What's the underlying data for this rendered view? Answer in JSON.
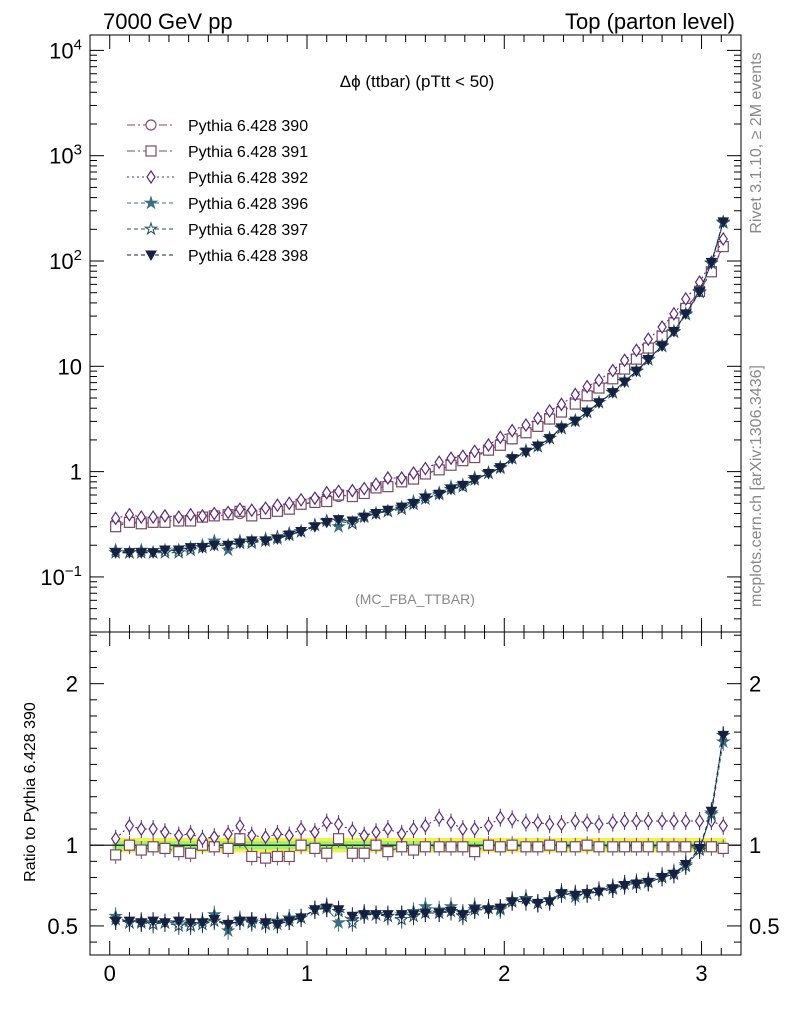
{
  "header": {
    "left": "7000 GeV pp",
    "right": "Top (parton level)"
  },
  "side_labels": {
    "rivet": "Rivet 3.1.10, ≥ 2M events",
    "mcplots": "mcplots.cern.ch [arXiv:1306.3436]"
  },
  "plot_title": "Δϕ (ttbar) (pTtt < 50)",
  "analysis_tag": "(MC_FBA_TTBAR)",
  "ratio_ylabel": "Ratio to Pythia 6.428 390",
  "chart_data": [
    {
      "type": "line",
      "panel": "main",
      "yscale": "log",
      "xlim": [
        -0.1,
        3.2
      ],
      "ylim": [
        0.03,
        14000
      ],
      "ytick_labels": [
        "10^-1",
        "1",
        "10",
        "10^2",
        "10^3",
        "10^4"
      ],
      "legend_placement": "top-left",
      "x": [
        0.03,
        0.1,
        0.16,
        0.22,
        0.28,
        0.35,
        0.41,
        0.47,
        0.53,
        0.6,
        0.66,
        0.72,
        0.79,
        0.85,
        0.91,
        0.97,
        1.04,
        1.1,
        1.16,
        1.23,
        1.29,
        1.35,
        1.41,
        1.48,
        1.54,
        1.6,
        1.67,
        1.73,
        1.79,
        1.85,
        1.92,
        1.98,
        2.04,
        2.11,
        2.17,
        2.23,
        2.29,
        2.36,
        2.42,
        2.48,
        2.55,
        2.61,
        2.67,
        2.73,
        2.8,
        2.86,
        2.92,
        2.99,
        3.05,
        3.11
      ],
      "series": [
        {
          "name": "Pythia 6.428 390",
          "color": "#8a4a72",
          "marker": "circle",
          "dash": "8,3,2,3",
          "values": [
            0.32,
            0.33,
            0.33,
            0.33,
            0.34,
            0.35,
            0.36,
            0.37,
            0.38,
            0.39,
            0.4,
            0.41,
            0.43,
            0.45,
            0.47,
            0.49,
            0.52,
            0.55,
            0.58,
            0.61,
            0.65,
            0.7,
            0.75,
            0.81,
            0.88,
            0.96,
            1.05,
            1.16,
            1.28,
            1.42,
            1.6,
            1.8,
            2.04,
            2.35,
            2.7,
            3.15,
            3.7,
            4.4,
            5.25,
            6.3,
            7.7,
            9.5,
            11.8,
            15,
            19.5,
            26,
            36,
            52,
            80,
            140
          ]
        },
        {
          "name": "Pythia 6.428 391",
          "color": "#7a4a66",
          "marker": "square",
          "dash": "8,3,2,3",
          "values": [
            0.3,
            0.33,
            0.32,
            0.33,
            0.33,
            0.34,
            0.34,
            0.37,
            0.38,
            0.39,
            0.42,
            0.38,
            0.4,
            0.42,
            0.44,
            0.49,
            0.51,
            0.52,
            0.6,
            0.58,
            0.62,
            0.7,
            0.72,
            0.8,
            0.85,
            0.95,
            1.04,
            1.15,
            1.27,
            1.36,
            1.6,
            1.78,
            2.05,
            2.34,
            2.69,
            3.16,
            3.68,
            4.38,
            5.25,
            6.22,
            7.61,
            9.42,
            11.7,
            14.9,
            19.3,
            25.8,
            35.5,
            51.5,
            79,
            137
          ]
        },
        {
          "name": "Pythia 6.428 392",
          "color": "#5b2a78",
          "marker": "diamond",
          "dash": "2,3",
          "values": [
            0.36,
            0.39,
            0.37,
            0.37,
            0.38,
            0.37,
            0.39,
            0.38,
            0.4,
            0.41,
            0.44,
            0.43,
            0.45,
            0.48,
            0.5,
            0.54,
            0.56,
            0.63,
            0.65,
            0.66,
            0.69,
            0.76,
            0.87,
            0.87,
            0.97,
            1.07,
            1.23,
            1.34,
            1.4,
            1.56,
            1.79,
            2.12,
            2.45,
            2.77,
            3.21,
            3.77,
            4.35,
            5.4,
            6.42,
            7.37,
            9.12,
            11.4,
            14.2,
            18.1,
            23.6,
            31.5,
            43.6,
            63,
            97,
            162
          ]
        },
        {
          "name": "Pythia 6.428 396",
          "color": "#3d6e7e",
          "marker": "star-filled",
          "dash": "4,3",
          "values": [
            0.18,
            0.17,
            0.18,
            0.17,
            0.18,
            0.18,
            0.19,
            0.2,
            0.22,
            0.18,
            0.22,
            0.22,
            0.23,
            0.23,
            0.26,
            0.27,
            0.31,
            0.34,
            0.3,
            0.33,
            0.37,
            0.4,
            0.42,
            0.46,
            0.52,
            0.59,
            0.63,
            0.72,
            0.75,
            0.88,
            0.98,
            1.08,
            1.35,
            1.58,
            1.73,
            2.07,
            2.64,
            3.01,
            3.69,
            4.55,
            5.7,
            7.19,
            9.08,
            11.7,
            15.8,
            21.5,
            31.7,
            51,
            95,
            230
          ]
        },
        {
          "name": "Pythia 6.428 397",
          "color": "#24505e",
          "marker": "star-open",
          "dash": "4,3",
          "values": [
            0.17,
            0.17,
            0.17,
            0.17,
            0.17,
            0.17,
            0.18,
            0.19,
            0.2,
            0.2,
            0.21,
            0.21,
            0.22,
            0.24,
            0.25,
            0.27,
            0.31,
            0.34,
            0.34,
            0.32,
            0.38,
            0.4,
            0.42,
            0.44,
            0.49,
            0.55,
            0.61,
            0.68,
            0.72,
            0.84,
            0.97,
            1.1,
            1.33,
            1.57,
            1.74,
            2.08,
            2.58,
            3.06,
            3.67,
            4.54,
            5.62,
            7.2,
            8.95,
            11.6,
            15.5,
            21.2,
            31.1,
            50.5,
            96,
            235
          ]
        },
        {
          "name": "Pythia 6.428 398",
          "color": "#162040",
          "marker": "triangle-down",
          "dash": "4,3",
          "values": [
            0.17,
            0.17,
            0.17,
            0.17,
            0.18,
            0.18,
            0.19,
            0.19,
            0.2,
            0.2,
            0.21,
            0.22,
            0.22,
            0.23,
            0.25,
            0.27,
            0.3,
            0.33,
            0.35,
            0.34,
            0.37,
            0.4,
            0.43,
            0.46,
            0.5,
            0.56,
            0.61,
            0.68,
            0.74,
            0.84,
            0.96,
            1.09,
            1.33,
            1.53,
            1.75,
            2.06,
            2.6,
            3.02,
            3.68,
            4.51,
            5.62,
            7.1,
            9,
            11.6,
            15.6,
            21.4,
            31.5,
            51.2,
            97,
            235
          ]
        }
      ]
    },
    {
      "type": "line",
      "panel": "ratio",
      "ylabel": "Ratio to Pythia 6.428 390",
      "xlim": [
        -0.1,
        3.2
      ],
      "ylim": [
        0.32,
        2.32
      ],
      "yticks": [
        0.5,
        1,
        2
      ],
      "xticks": [
        0,
        1,
        2,
        3
      ],
      "band": {
        "center": 1.0,
        "inner_halfwidth": 0.025,
        "outer_halfwidth": 0.045,
        "inner_color": "#9af27a",
        "outer_color": "#f6f04a"
      },
      "x": [
        0.03,
        0.1,
        0.16,
        0.22,
        0.28,
        0.35,
        0.41,
        0.47,
        0.53,
        0.6,
        0.66,
        0.72,
        0.79,
        0.85,
        0.91,
        0.97,
        1.04,
        1.1,
        1.16,
        1.23,
        1.29,
        1.35,
        1.41,
        1.48,
        1.54,
        1.6,
        1.67,
        1.73,
        1.79,
        1.85,
        1.92,
        1.98,
        2.04,
        2.11,
        2.17,
        2.23,
        2.29,
        2.36,
        2.42,
        2.48,
        2.55,
        2.61,
        2.67,
        2.73,
        2.8,
        2.86,
        2.92,
        2.99,
        3.05,
        3.11
      ],
      "series": [
        {
          "name": "Pythia 6.428 391",
          "color": "#7a4a66",
          "marker": "square",
          "dash": "8,3,2,3",
          "values": [
            0.94,
            1.0,
            0.97,
            0.99,
            0.98,
            0.96,
            0.95,
            1.0,
            0.99,
            0.98,
            1.04,
            0.93,
            0.92,
            0.93,
            0.93,
            1.0,
            0.98,
            0.95,
            1.04,
            0.95,
            0.95,
            1.0,
            0.96,
            0.99,
            0.97,
            0.99,
            0.99,
            0.99,
            0.99,
            0.96,
            1.0,
            0.99,
            1.0,
            0.99,
            0.99,
            1.0,
            0.99,
            0.99,
            1.0,
            0.99,
            0.99,
            0.99,
            0.99,
            0.99,
            0.99,
            0.99,
            0.99,
            0.99,
            0.99,
            0.98
          ]
        },
        {
          "name": "Pythia 6.428 392",
          "color": "#5b2a78",
          "marker": "diamond",
          "dash": "2,3",
          "values": [
            1.04,
            1.12,
            1.1,
            1.1,
            1.08,
            1.06,
            1.07,
            1.04,
            1.05,
            1.07,
            1.12,
            1.06,
            1.05,
            1.07,
            1.06,
            1.1,
            1.08,
            1.14,
            1.13,
            1.09,
            1.06,
            1.08,
            1.1,
            1.07,
            1.1,
            1.12,
            1.17,
            1.14,
            1.1,
            1.1,
            1.12,
            1.17,
            1.16,
            1.14,
            1.14,
            1.13,
            1.13,
            1.15,
            1.14,
            1.13,
            1.14,
            1.15,
            1.15,
            1.15,
            1.15,
            1.15,
            1.15,
            1.15,
            1.15,
            1.12
          ]
        },
        {
          "name": "Pythia 6.428 396",
          "color": "#3d6e7e",
          "marker": "star-filled",
          "dash": "4,3",
          "values": [
            0.56,
            0.52,
            0.53,
            0.52,
            0.52,
            0.52,
            0.51,
            0.53,
            0.57,
            0.47,
            0.54,
            0.53,
            0.52,
            0.51,
            0.55,
            0.55,
            0.6,
            0.61,
            0.52,
            0.54,
            0.57,
            0.57,
            0.56,
            0.57,
            0.59,
            0.62,
            0.6,
            0.62,
            0.58,
            0.62,
            0.61,
            0.6,
            0.66,
            0.67,
            0.64,
            0.66,
            0.71,
            0.68,
            0.7,
            0.72,
            0.74,
            0.76,
            0.77,
            0.78,
            0.81,
            0.83,
            0.88,
            0.98,
            1.19,
            1.64
          ]
        },
        {
          "name": "Pythia 6.428 397",
          "color": "#24505e",
          "marker": "star-open",
          "dash": "4,3",
          "values": [
            0.54,
            0.52,
            0.52,
            0.51,
            0.52,
            0.5,
            0.5,
            0.51,
            0.53,
            0.51,
            0.53,
            0.52,
            0.51,
            0.53,
            0.53,
            0.55,
            0.6,
            0.62,
            0.59,
            0.52,
            0.58,
            0.57,
            0.56,
            0.54,
            0.56,
            0.58,
            0.58,
            0.59,
            0.56,
            0.6,
            0.61,
            0.61,
            0.65,
            0.67,
            0.64,
            0.66,
            0.7,
            0.7,
            0.7,
            0.72,
            0.73,
            0.76,
            0.76,
            0.77,
            0.8,
            0.82,
            0.87,
            0.97,
            1.2,
            1.68
          ]
        },
        {
          "name": "Pythia 6.428 398",
          "color": "#162040",
          "marker": "triangle-down",
          "dash": "4,3",
          "values": [
            0.53,
            0.53,
            0.52,
            0.53,
            0.52,
            0.53,
            0.52,
            0.52,
            0.54,
            0.51,
            0.53,
            0.53,
            0.52,
            0.51,
            0.53,
            0.55,
            0.6,
            0.61,
            0.6,
            0.56,
            0.57,
            0.57,
            0.57,
            0.57,
            0.57,
            0.58,
            0.58,
            0.59,
            0.57,
            0.6,
            0.6,
            0.61,
            0.65,
            0.65,
            0.64,
            0.65,
            0.7,
            0.69,
            0.7,
            0.71,
            0.73,
            0.75,
            0.76,
            0.77,
            0.8,
            0.82,
            0.88,
            0.98,
            1.21,
            1.68
          ]
        }
      ]
    }
  ]
}
